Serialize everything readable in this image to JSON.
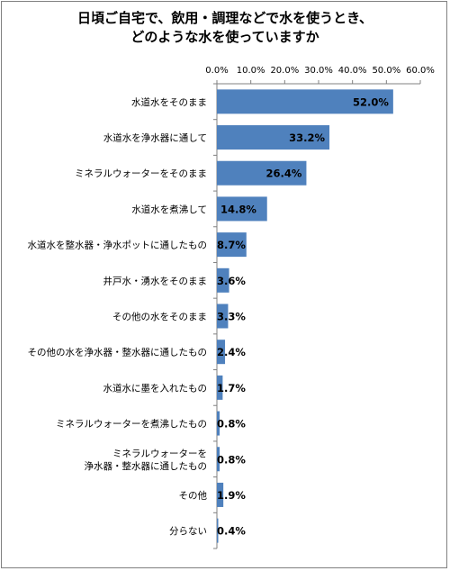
{
  "chart_data": {
    "type": "bar",
    "orientation": "horizontal",
    "title": [
      "日頃ご自宅で、飲用・調理などで水を使うとき、",
      "どのような水を使っていますか"
    ],
    "xlim": [
      0,
      60
    ],
    "x_ticks": [
      "0.0%",
      "10.0%",
      "20.0%",
      "30.0%",
      "40.0%",
      "50.0%",
      "60.0%"
    ],
    "x_axis_position": "top",
    "grid": false,
    "legend": "none",
    "bar_color": "#4f81bd",
    "categories": [
      [
        "水道水をそのまま"
      ],
      [
        "水道水を浄水器に通して"
      ],
      [
        "ミネラルウォーターをそのまま"
      ],
      [
        "水道水を煮沸して"
      ],
      [
        "水道水を整水器・浄水ポットに通したもの"
      ],
      [
        "井戸水・湧水をそのまま"
      ],
      [
        "その他の水をそのまま"
      ],
      [
        "その他の水を浄水器・整水器に通したもの"
      ],
      [
        "水道水に墨を入れたもの"
      ],
      [
        "ミネラルウォーターを煮沸したもの"
      ],
      [
        "ミネラルウォーターを",
        "浄水器・整水器に通したもの"
      ],
      [
        "その他"
      ],
      [
        "分らない"
      ]
    ],
    "values": [
      52.0,
      33.2,
      26.4,
      14.8,
      8.7,
      3.6,
      3.3,
      2.4,
      1.7,
      0.8,
      0.8,
      1.9,
      0.4
    ],
    "value_labels": [
      "52.0%",
      "33.2%",
      "26.4%",
      "14.8%",
      "8.7%",
      "3.6%",
      "3.3%",
      "2.4%",
      "1.7%",
      "0.8%",
      "0.8%",
      "1.9%",
      "0.4%"
    ]
  }
}
